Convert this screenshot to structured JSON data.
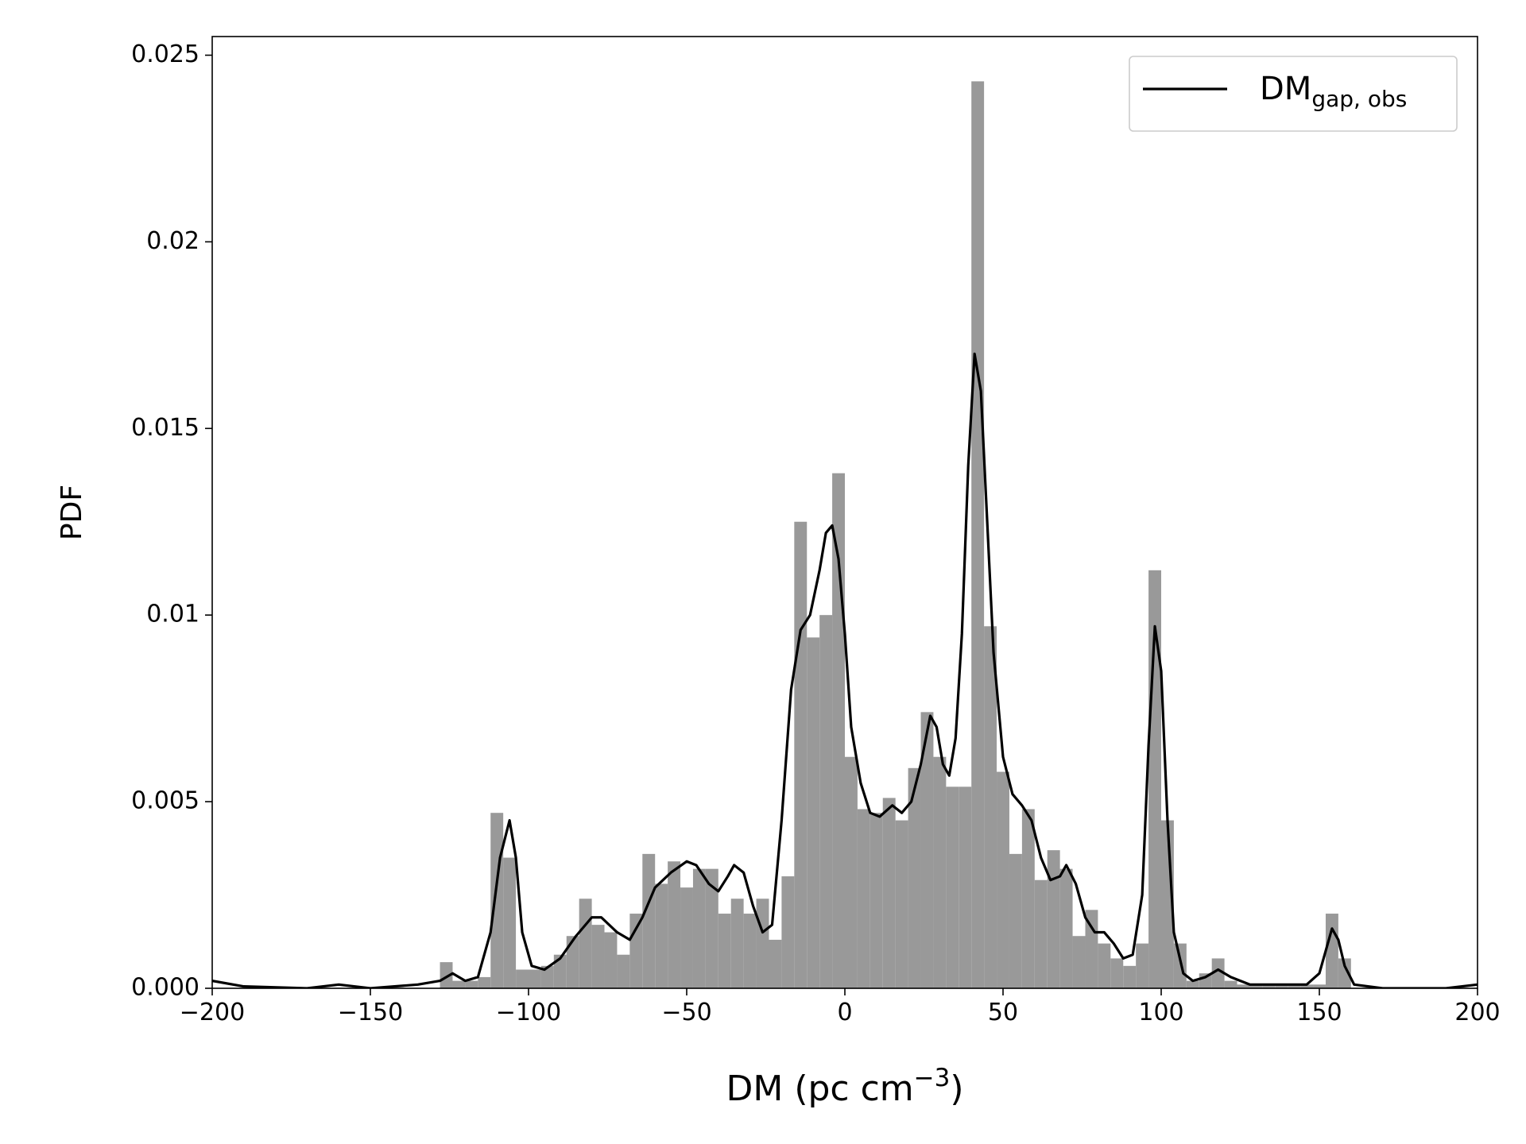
{
  "chart_data": {
    "type": "histogram",
    "xlabel": {
      "text": "DM (pc cm",
      "superscript": "−3",
      "suffix": ")"
    },
    "ylabel": "PDF",
    "xlim": [
      -200,
      200
    ],
    "ylim": [
      0,
      0.0255
    ],
    "xticks": [
      {
        "value": -200,
        "label": "−200"
      },
      {
        "value": -150,
        "label": "−150"
      },
      {
        "value": -100,
        "label": "−100"
      },
      {
        "value": -50,
        "label": "−50"
      },
      0,
      50,
      100,
      150,
      200
    ],
    "yticks": [
      {
        "value": 0,
        "label": "0.000"
      },
      0.005,
      0.01,
      0.015,
      0.02,
      0.025
    ],
    "color": "#999999",
    "bins": [
      -128,
      -124,
      -120,
      -116,
      -112,
      -108,
      -104,
      -100,
      -96,
      -92,
      -88,
      -84,
      -80,
      -76,
      -72,
      -68,
      -64,
      -60,
      -56,
      -52,
      -48,
      -44,
      -40,
      -36,
      -32,
      -28,
      -24,
      -20,
      -16,
      -12,
      -8,
      -4,
      0,
      4,
      8,
      12,
      16,
      20,
      24,
      28,
      32,
      36,
      40,
      44,
      48,
      52,
      56,
      60,
      64,
      68,
      72,
      76,
      80,
      84,
      88,
      92,
      96,
      100,
      104,
      108,
      112,
      116,
      120,
      124,
      128,
      132,
      136,
      140,
      144,
      148,
      152,
      156,
      160
    ],
    "values": [
      0.0007,
      0.0002,
      0.0002,
      0.0003,
      0.0047,
      0.0035,
      0.0005,
      0.0005,
      0.0006,
      0.0009,
      0.0014,
      0.0024,
      0.0017,
      0.0015,
      0.0009,
      0.002,
      0.0036,
      0.0028,
      0.0034,
      0.0027,
      0.0032,
      0.0032,
      0.002,
      0.0024,
      0.002,
      0.0024,
      0.0013,
      0.003,
      0.0125,
      0.0094,
      0.01,
      0.0138,
      0.0062,
      0.0048,
      0.0047,
      0.0051,
      0.0045,
      0.0059,
      0.0074,
      0.0062,
      0.0054,
      0.0054,
      0.0243,
      0.0097,
      0.0058,
      0.0036,
      0.0048,
      0.0029,
      0.0037,
      0.0032,
      0.0014,
      0.0021,
      0.0012,
      0.0008,
      0.0006,
      0.0012,
      0.0112,
      0.0045,
      0.0012,
      0.0002,
      0.0004,
      0.0008,
      0.0002,
      0.0001,
      0.0001,
      0.0001,
      0.0001,
      0.0001,
      0.0001,
      0.0001,
      0.002,
      0.0008
    ],
    "kde": {
      "type": "line",
      "name": "DM",
      "name_subscript": "gap, obs",
      "color": "#000000",
      "x": [
        -200,
        -190,
        -170,
        -160,
        -150,
        -135,
        -128,
        -124,
        -120,
        -116,
        -112,
        -109,
        -106,
        -104,
        -102,
        -99,
        -95,
        -90,
        -85,
        -80,
        -77,
        -72,
        -68,
        -64,
        -60,
        -55,
        -50,
        -47,
        -43,
        -40,
        -37,
        -35,
        -32,
        -29,
        -26,
        -23,
        -20,
        -17,
        -14,
        -11,
        -8,
        -6,
        -4,
        -2,
        0,
        2,
        5,
        8,
        11,
        15,
        18,
        21,
        24,
        27,
        29,
        31,
        33,
        35,
        37,
        39,
        41,
        43,
        45,
        47,
        50,
        53,
        56,
        59,
        62,
        65,
        68,
        70,
        73,
        76,
        79,
        82,
        85,
        88,
        91,
        94,
        96,
        98,
        100,
        102,
        104,
        107,
        110,
        114,
        118,
        122,
        128,
        140,
        146,
        150,
        152,
        154,
        156,
        158,
        161,
        170,
        190,
        200
      ],
      "values": [
        0.0002,
        5e-05,
        0,
        0.0001,
        0,
        0.0001,
        0.0002,
        0.0004,
        0.0002,
        0.0003,
        0.0015,
        0.0035,
        0.0045,
        0.0035,
        0.0015,
        0.0006,
        0.0005,
        0.0008,
        0.0014,
        0.0019,
        0.0019,
        0.0015,
        0.0013,
        0.0019,
        0.0027,
        0.0031,
        0.0034,
        0.0033,
        0.0028,
        0.0026,
        0.003,
        0.0033,
        0.0031,
        0.0022,
        0.0015,
        0.0017,
        0.0045,
        0.008,
        0.0096,
        0.01,
        0.0112,
        0.0122,
        0.0124,
        0.0115,
        0.0095,
        0.007,
        0.0055,
        0.0047,
        0.0046,
        0.0049,
        0.0047,
        0.005,
        0.006,
        0.0073,
        0.007,
        0.006,
        0.0057,
        0.0067,
        0.0095,
        0.014,
        0.017,
        0.016,
        0.0125,
        0.009,
        0.0062,
        0.0052,
        0.0049,
        0.0045,
        0.0035,
        0.0029,
        0.003,
        0.0033,
        0.0028,
        0.0019,
        0.0015,
        0.0015,
        0.0012,
        0.0008,
        0.0009,
        0.0025,
        0.0065,
        0.0097,
        0.0085,
        0.0045,
        0.0015,
        0.0004,
        0.0002,
        0.0003,
        0.0005,
        0.0003,
        0.0001,
        0.0001,
        0.0001,
        0.0004,
        0.001,
        0.0016,
        0.0013,
        0.0006,
        0.0001,
        0,
        0,
        0.0001
      ]
    }
  }
}
